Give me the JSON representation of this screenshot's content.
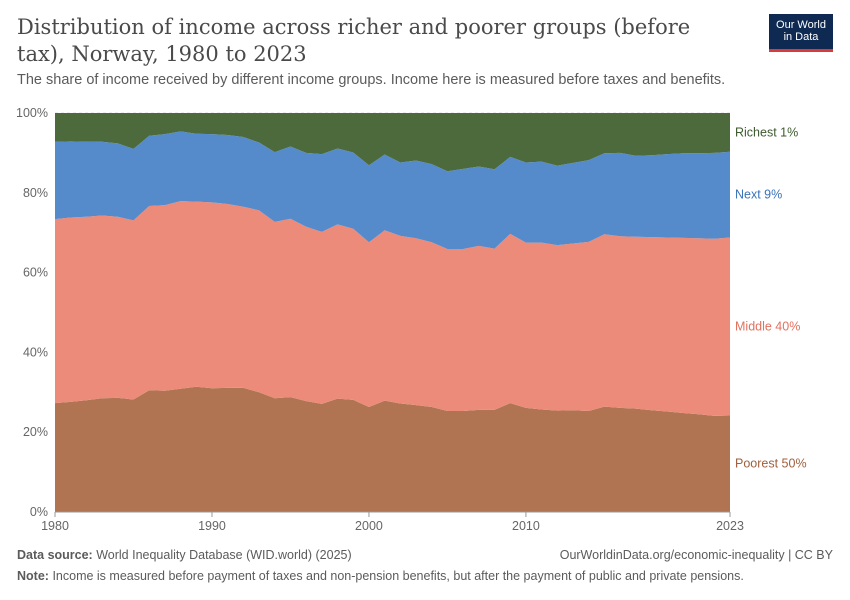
{
  "header": {
    "title": "Distribution of income across richer and poorer groups (before tax), Norway, 1980 to 2023",
    "subtitle": "The share of income received by different income groups. Income here is measured before taxes and benefits.",
    "logo_line1": "Our World",
    "logo_line2": "in Data"
  },
  "footer": {
    "source_label": "Data source:",
    "source_text": "World Inequality Database (WID.world) (2025)",
    "license": "OurWorldinData.org/economic-inequality | CC BY",
    "note_label": "Note:",
    "note_text": "Income is measured before payment of taxes and non-pension benefits, but after the payment of public and private pensions."
  },
  "chart_data": {
    "type": "area",
    "stacked": true,
    "x": [
      1980,
      1981,
      1982,
      1983,
      1984,
      1985,
      1986,
      1987,
      1988,
      1989,
      1990,
      1991,
      1992,
      1993,
      1994,
      1995,
      1996,
      1997,
      1998,
      1999,
      2000,
      2001,
      2002,
      2003,
      2004,
      2005,
      2006,
      2007,
      2008,
      2009,
      2010,
      2011,
      2012,
      2013,
      2014,
      2015,
      2016,
      2017,
      2018,
      2019,
      2020,
      2021,
      2022,
      2023
    ],
    "series": [
      {
        "name": "Poorest 50%",
        "color": "#b07452",
        "values": [
          27.3,
          27.6,
          28.0,
          28.5,
          28.6,
          28.2,
          30.5,
          30.4,
          30.9,
          31.4,
          31.0,
          31.1,
          31.1,
          30.0,
          28.5,
          28.8,
          27.8,
          27.1,
          28.4,
          28.1,
          26.3,
          27.9,
          27.2,
          26.8,
          26.3,
          25.3,
          25.3,
          25.6,
          25.6,
          27.3,
          26.1,
          25.7,
          25.4,
          25.5,
          25.3,
          26.4,
          26.1,
          25.9,
          25.5,
          25.2,
          24.8,
          24.5,
          24.1,
          24.2
        ]
      },
      {
        "name": "Middle 40%",
        "color": "#ec8b79",
        "values": [
          46.1,
          46.2,
          46.0,
          45.8,
          45.4,
          44.9,
          46.2,
          46.5,
          47.0,
          46.4,
          46.6,
          46.1,
          45.4,
          45.6,
          44.2,
          44.7,
          43.7,
          43.1,
          43.7,
          42.9,
          41.3,
          42.7,
          42.0,
          41.8,
          41.3,
          40.6,
          40.6,
          41.1,
          40.4,
          42.4,
          41.4,
          41.8,
          41.5,
          41.8,
          42.4,
          43.2,
          43.0,
          43.1,
          43.4,
          43.6,
          43.9,
          44.1,
          44.4,
          44.6
        ]
      },
      {
        "name": "Next 9%",
        "color": "#568bcb",
        "values": [
          19.4,
          19.1,
          18.8,
          18.5,
          18.4,
          17.9,
          17.6,
          17.8,
          17.5,
          17.0,
          17.1,
          17.3,
          17.5,
          17.0,
          17.5,
          18.1,
          18.5,
          19.5,
          19.0,
          19.1,
          19.3,
          19.0,
          18.4,
          19.5,
          19.6,
          19.5,
          20.1,
          19.9,
          19.9,
          19.3,
          20.1,
          20.3,
          19.9,
          20.2,
          20.5,
          20.3,
          20.9,
          20.3,
          20.5,
          20.9,
          21.2,
          21.3,
          21.5,
          21.5
        ]
      },
      {
        "name": "Richest 1%",
        "color": "#4c6a3c",
        "values": [
          7.2,
          7.1,
          7.2,
          7.2,
          7.6,
          9.0,
          5.7,
          5.3,
          4.6,
          5.2,
          5.3,
          5.5,
          6.0,
          7.4,
          9.8,
          8.4,
          10.0,
          10.3,
          8.9,
          9.9,
          13.1,
          10.4,
          12.4,
          11.9,
          12.8,
          14.6,
          14.0,
          13.4,
          14.1,
          11.0,
          12.4,
          12.2,
          13.2,
          12.5,
          11.8,
          10.1,
          10.0,
          10.7,
          10.6,
          10.3,
          10.1,
          10.1,
          10.0,
          9.7
        ]
      }
    ],
    "y_ticks": [
      "0%",
      "20%",
      "40%",
      "60%",
      "80%",
      "100%"
    ],
    "x_ticks": [
      "1980",
      "1990",
      "2000",
      "2010",
      "2023"
    ],
    "ylim": [
      0,
      100
    ],
    "grid": true,
    "legend": "right-inline"
  }
}
